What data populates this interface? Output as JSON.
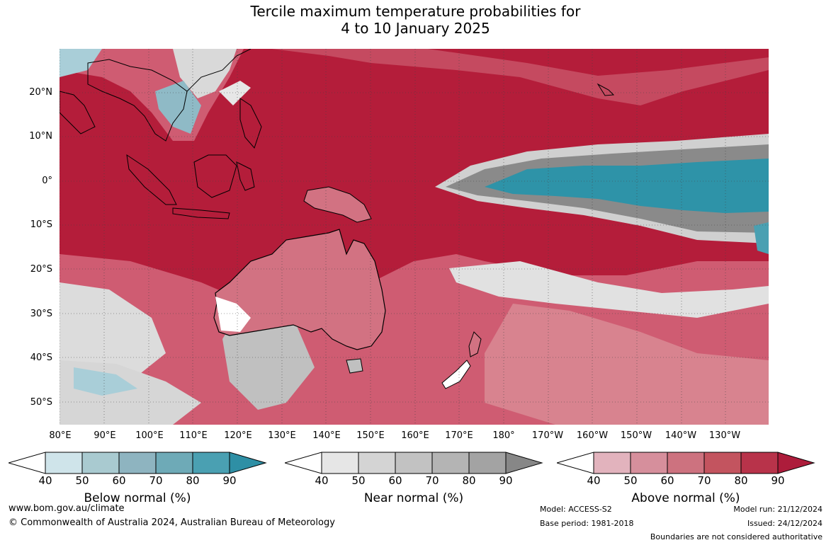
{
  "title": {
    "line1": "Tercile maximum temperature probabilities for",
    "line2": "4 to 10 January 2025"
  },
  "map": {
    "lat_labels": [
      "20°N",
      "10°N",
      "0°",
      "10°S",
      "20°S",
      "30°S",
      "40°S",
      "50°S"
    ],
    "lon_labels": [
      "80°E",
      "90°E",
      "100°E",
      "110°E",
      "120°E",
      "130°E",
      "140°E",
      "150°E",
      "160°E",
      "170°E",
      "180°",
      "170°W",
      "160°W",
      "150°W",
      "140°W",
      "130°W"
    ],
    "colors": {
      "ocean_hot": "#b41d3a",
      "warm_mid": "#cf4f65",
      "warm_light": "#dd8190",
      "near_gray": "#8a8a8a",
      "near_light": "#d2d2d2",
      "below_teal": "#2e93a8",
      "below_light": "#a9ced8"
    }
  },
  "colorbars": [
    {
      "ticks": [
        "40",
        "50",
        "60",
        "70",
        "80",
        "90"
      ],
      "title": "Below normal (%)",
      "colors": [
        "#cfe4ea",
        "#a9cad0",
        "#8eb4c0",
        "#6eaab7",
        "#4aa0b2",
        "#2e8fa5"
      ]
    },
    {
      "ticks": [
        "40",
        "50",
        "60",
        "70",
        "80",
        "90"
      ],
      "title": "Near normal (%)",
      "colors": [
        "#e6e6e6",
        "#d4d4d4",
        "#c2c2c2",
        "#b4b4b4",
        "#a3a3a3",
        "#878787"
      ]
    },
    {
      "ticks": [
        "40",
        "50",
        "60",
        "70",
        "80",
        "90"
      ],
      "title": "Above normal (%)",
      "colors": [
        "#e2b3bd",
        "#d68f9c",
        "#cd727f",
        "#c3545f",
        "#b8334a",
        "#ad1c3b"
      ]
    }
  ],
  "footer": {
    "website": "www.bom.gov.au/climate",
    "copyright": "© Commonwealth of Australia 2024, Australian Bureau of Meteorology",
    "model": "Model: ACCESS-S2",
    "base_period": "Base period: 1981-2018",
    "model_run": "Model run: 21/12/2024",
    "issued": "Issued: 24/12/2024",
    "disclaimer": "Boundaries are not considered authoritative"
  }
}
